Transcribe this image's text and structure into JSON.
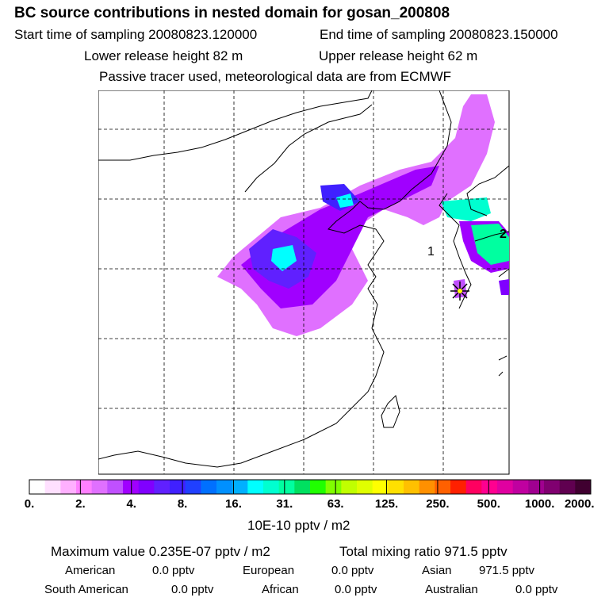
{
  "header": {
    "title": "BC  source contributions in nested domain for gosan_200808",
    "start_time": "Start time of sampling 20080823.120000",
    "end_time": "End time of sampling 20080823.150000",
    "lower_release": "Lower release height   82 m",
    "upper_release": "Upper release height   62 m",
    "tracer_note": "Passive tracer used, meteorological data are from ECMWF"
  },
  "chart_data": {
    "type": "heatmap",
    "title": "BC  source contributions in nested domain for gosan_200808",
    "colorbar": {
      "ticks": [
        "0.",
        "2.",
        "4.",
        "8.",
        "16.",
        "31.",
        "63.",
        "125.",
        "250.",
        "500.",
        "1000.",
        "2000."
      ],
      "units": "10E-10 pptv / m2",
      "colors": [
        "#ffffff",
        "#ffe0ff",
        "#ffb0ff",
        "#ff80ff",
        "#e070ff",
        "#c050ff",
        "#a000ff",
        "#8000ff",
        "#6020ff",
        "#4020ff",
        "#2040ff",
        "#0070ff",
        "#0090ff",
        "#00b0ff",
        "#00ffff",
        "#00ffd0",
        "#00ffa0",
        "#00e060",
        "#20ff00",
        "#80ff00",
        "#c0ff00",
        "#e0ff00",
        "#ffff00",
        "#ffe000",
        "#ffc000",
        "#ff9000",
        "#ff6000",
        "#ff2000",
        "#ff0060",
        "#ff0090",
        "#e000a0",
        "#c000a0",
        "#a00090",
        "#800070",
        "#600050",
        "#400030"
      ]
    },
    "annotations": [
      "1",
      "2"
    ],
    "receptor": "Gosan"
  },
  "stats": {
    "max_value": "Maximum value  0.235E-07 pptv / m2",
    "total_mixing": "Total mixing ratio      971.5 pptv",
    "rows": [
      [
        {
          "label": "American",
          "value": "0.0 pptv"
        },
        {
          "label": "European",
          "value": "0.0 pptv"
        },
        {
          "label": "Asian",
          "value": "971.5 pptv"
        }
      ],
      [
        {
          "label": "South American",
          "value": "0.0 pptv"
        },
        {
          "label": "African",
          "value": "0.0 pptv"
        },
        {
          "label": "Australian",
          "value": "0.0 pptv"
        }
      ]
    ]
  }
}
